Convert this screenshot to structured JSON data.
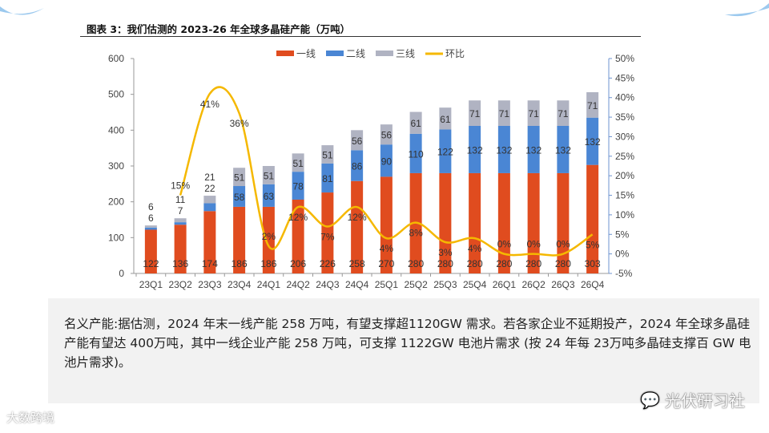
{
  "header": {
    "title": "图表 3：我们估测的 2023-26 年全球多晶硅产能（万吨）"
  },
  "chart_data": {
    "type": "bar",
    "stacked": true,
    "title": "图表 3：我们估测的 2023-26 年全球多晶硅产能（万吨）",
    "categories": [
      "23Q1",
      "23Q2",
      "23Q3",
      "23Q4",
      "24Q1",
      "24Q2",
      "24Q3",
      "24Q4",
      "25Q1",
      "25Q2",
      "25Q3",
      "25Q4",
      "26Q1",
      "26Q2",
      "26Q3",
      "26Q4"
    ],
    "series": [
      {
        "name": "一线",
        "color": "#e04c1f",
        "values": [
          122,
          136,
          174,
          186,
          186,
          206,
          226,
          258,
          270,
          280,
          280,
          280,
          280,
          280,
          280,
          303
        ]
      },
      {
        "name": "二线",
        "color": "#4a86d4",
        "values": [
          6,
          7,
          22,
          58,
          63,
          78,
          81,
          86,
          90,
          110,
          122,
          132,
          132,
          132,
          132,
          132
        ]
      },
      {
        "name": "三线",
        "color": "#b0b3c2",
        "values": [
          6,
          11,
          21,
          51,
          51,
          51,
          51,
          56,
          56,
          61,
          61,
          71,
          71,
          71,
          71,
          71
        ]
      },
      {
        "name": "环比",
        "color": "#f5b800",
        "type": "line",
        "axis": "right",
        "values": [
          null,
          15,
          41,
          36,
          2,
          12,
          7,
          12,
          4,
          8,
          3,
          4,
          0,
          0,
          0,
          5
        ],
        "labels": [
          "",
          "15%",
          "41%",
          "36%",
          "2%",
          "12%",
          "7%",
          "12%",
          "4%",
          "8%",
          "3%",
          "4%",
          "0%",
          "0%",
          "0%",
          "5%"
        ]
      }
    ],
    "ylim": [
      0,
      600
    ],
    "yticks": [
      "0",
      "100",
      "200",
      "300",
      "400",
      "500",
      "600"
    ],
    "y2lim": [
      -5,
      50
    ],
    "y2ticks": [
      "-5%",
      "0%",
      "5%",
      "10%",
      "15%",
      "20%",
      "25%",
      "30%",
      "35%",
      "40%",
      "45%",
      "50%"
    ],
    "legend_position": "top-center",
    "grid": false
  },
  "body_text": "名义产能:据估测，2024 年末一线产能 258 万吨，有望支撑超1120GW 需求。若各家企业不延期投产，2024 年全球多晶硅产能有望达 400万吨，其中一线企业产能 258 万吨，可支撑 1122GW 电池片需求 (按 24 年每 23万吨多晶硅支撑百 GW 电池片需求)。",
  "watermarks": {
    "wechat": "光伏研习社",
    "corner": "大数跨境"
  }
}
